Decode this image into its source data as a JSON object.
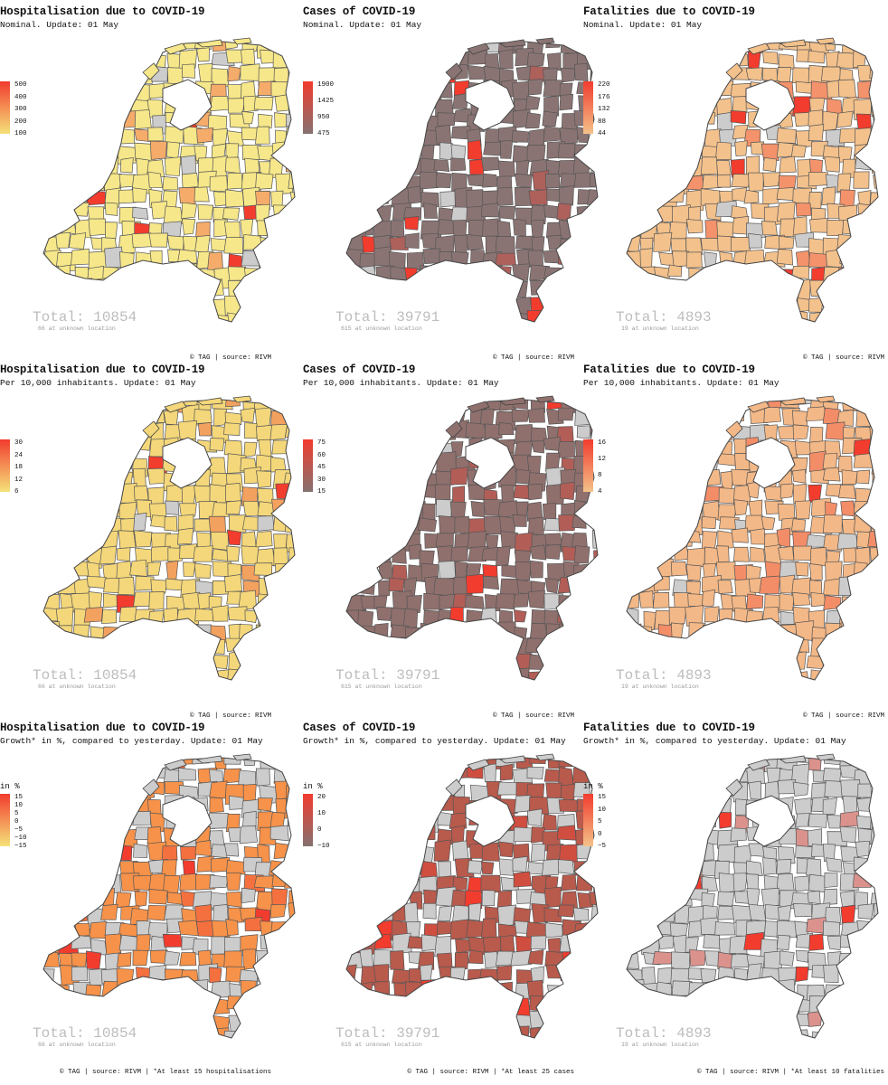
{
  "rows": [
    {
      "subtitle_suffix": "Nominal. Update: 01 May",
      "panels": [
        {
          "title": "Hospitalisation due to COVID-19",
          "subtitle": "Nominal. Update: 01 May",
          "legend_title": "",
          "ticks": [
            "500",
            "400",
            "300",
            "200",
            "100"
          ],
          "colors": {
            "low": "#f5e27a",
            "high": "#f23c2e",
            "base": "#f6e78a",
            "nodata": "#cccccc"
          },
          "total": "Total: 10854",
          "unknown": "66 at unknown location",
          "caption": "© TAG | source: RIVM"
        },
        {
          "title": "Cases of COVID-19",
          "subtitle": "Nominal. Update: 01 May",
          "legend_title": "",
          "ticks": [
            "1900",
            "1425",
            "950",
            "475"
          ],
          "colors": {
            "low": "#857170",
            "high": "#f23c2e",
            "base": "#8a7473",
            "nodata": "#cccccc"
          },
          "total": "Total: 39791",
          "unknown": "615 at unknown location",
          "caption": "© TAG | source: RIVM"
        },
        {
          "title": "Fatalities due to COVID-19",
          "subtitle": "Nominal. Update: 01 May",
          "legend_title": "",
          "ticks": [
            "220",
            "176",
            "132",
            "88",
            "44"
          ],
          "colors": {
            "low": "#f4c28a",
            "high": "#f23c2e",
            "base": "#f3c18c",
            "nodata": "#cccccc"
          },
          "total": "Total: 4893",
          "unknown": "19 at unknown location",
          "caption": "© TAG | source: RIVM"
        }
      ]
    },
    {
      "panels": [
        {
          "title": "Hospitalisation due to COVID-19",
          "subtitle": "Per 10,000 inhabitants. Update: 01 May",
          "legend_title": "",
          "ticks": [
            "30",
            "24",
            "18",
            "12",
            "6"
          ],
          "colors": {
            "low": "#f5e27a",
            "high": "#f23c2e",
            "base": "#f4d77a",
            "nodata": "#cccccc"
          },
          "total": "Total: 10854",
          "unknown": "66 at unknown location",
          "caption": "© TAG | source: RIVM"
        },
        {
          "title": "Cases of COVID-19",
          "subtitle": "Per 10,000 inhabitants. Update: 01 May",
          "legend_title": "",
          "ticks": [
            "75",
            "60",
            "45",
            "30",
            "15"
          ],
          "colors": {
            "low": "#857170",
            "high": "#f23c2e",
            "base": "#8f706d",
            "nodata": "#cccccc"
          },
          "total": "Total: 39791",
          "unknown": "615 at unknown location",
          "caption": "© TAG | source: RIVM"
        },
        {
          "title": "Fatalities due to COVID-19",
          "subtitle": "Per 10,000 inhabitants. Update: 01 May",
          "legend_title": "",
          "ticks": [
            "16",
            "12",
            "8",
            "4"
          ],
          "colors": {
            "low": "#f4c28a",
            "high": "#f23c2e",
            "base": "#f3b887",
            "nodata": "#cccccc"
          },
          "total": "Total: 4893",
          "unknown": "19 at unknown location",
          "caption": "© TAG | source: RIVM"
        }
      ]
    },
    {
      "panels": [
        {
          "title": "Hospitalisation due to COVID-19",
          "subtitle": "Growth* in %, compared to yesterday. Update: 01 May",
          "legend_title": "in %",
          "ticks": [
            "15",
            "10",
            "5",
            "0",
            "−5",
            "−10",
            "−15"
          ],
          "colors": {
            "low": "#f5e27a",
            "high": "#f23c2e",
            "base": "#f6924a",
            "nodata": "#cccccc"
          },
          "total": "Total: 10854",
          "unknown": "66 at unknown location",
          "caption": "© TAG | source: RIVM | *At least 15 hospitalisations"
        },
        {
          "title": "Cases of COVID-19",
          "subtitle": "Growth* in %, compared to yesterday. Update: 01 May",
          "legend_title": "in %",
          "ticks": [
            "20",
            "10",
            "0",
            "−10"
          ],
          "colors": {
            "low": "#857170",
            "high": "#f23c2e",
            "base": "#b85a4c",
            "nodata": "#cccccc"
          },
          "total": "Total: 39791",
          "unknown": "615 at unknown location",
          "caption": "© TAG | source: RIVM | *At least 25 cases"
        },
        {
          "title": "Fatalities due to COVID-19",
          "subtitle": "Growth* in %, compared to yesterday. Update: 01 May",
          "legend_title": "in %",
          "ticks": [
            "15",
            "10",
            "5",
            "0",
            "−5"
          ],
          "colors": {
            "low": "#f4c28a",
            "high": "#f23c2e",
            "base": "#cccccc",
            "nodata": "#cccccc"
          },
          "total": "Total: 4893",
          "unknown": "19 at unknown location",
          "caption": "© TAG | source: RIVM | *At least 10 fatalities"
        }
      ]
    }
  ]
}
